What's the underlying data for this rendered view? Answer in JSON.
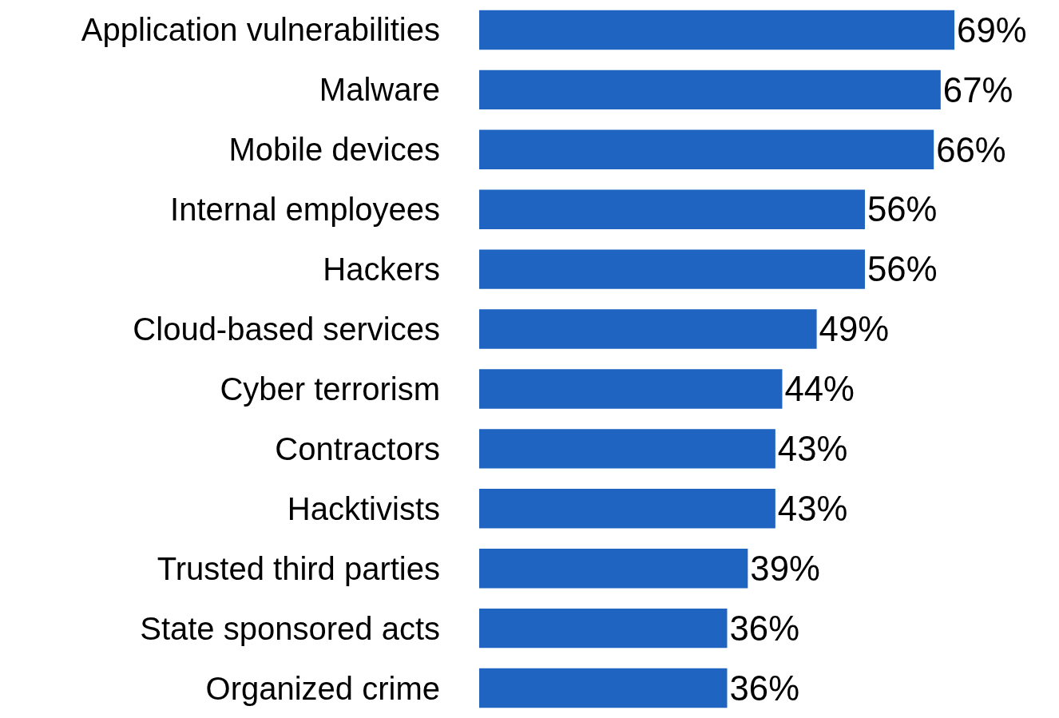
{
  "chart_data": {
    "type": "bar",
    "orientation": "horizontal",
    "categories": [
      "Application vulnerabilities",
      "Malware",
      "Mobile devices",
      "Internal employees",
      "Hackers",
      "Cloud-based services",
      "Cyber terrorism",
      "Contractors",
      "Hacktivists",
      "Trusted third parties",
      "State sponsored acts",
      "Organized crime"
    ],
    "values": [
      69,
      67,
      66,
      56,
      56,
      49,
      44,
      43,
      43,
      39,
      36,
      36
    ],
    "value_labels": [
      "69%",
      "67%",
      "66%",
      "56%",
      "56%",
      "49%",
      "44%",
      "43%",
      "43%",
      "39%",
      "36%",
      "36%"
    ],
    "color": "#1f64c0"
  }
}
